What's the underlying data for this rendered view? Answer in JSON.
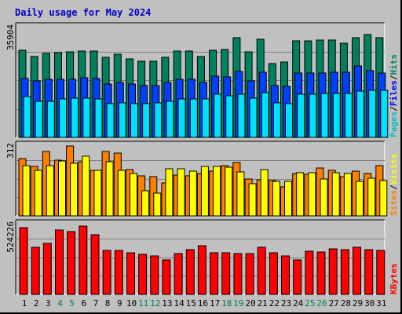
{
  "chart_data": {
    "type": "bar",
    "title": "Daily usage for May 2024",
    "categories": [
      "1",
      "2",
      "3",
      "4",
      "5",
      "6",
      "7",
      "8",
      "9",
      "10",
      "11",
      "12",
      "13",
      "14",
      "15",
      "16",
      "17",
      "18",
      "19",
      "20",
      "21",
      "22",
      "23",
      "24",
      "25",
      "26",
      "27",
      "28",
      "29",
      "30",
      "31"
    ],
    "weekend_days": [
      "4",
      "5",
      "11",
      "12",
      "18",
      "19",
      "25",
      "26"
    ],
    "panels": {
      "hits": {
        "ymax_label": "35904",
        "ymax": 35904,
        "legend": [
          "Pages",
          "Files",
          "Hits"
        ],
        "series": [
          {
            "name": "Hits",
            "color": "#00805c",
            "values": [
              28100,
              26000,
              27000,
              27200,
              27600,
              27700,
              27700,
              25900,
              26800,
              25300,
              24600,
              24600,
              25900,
              27800,
              27900,
              26100,
              28000,
              28200,
              32100,
              27600,
              31500,
              23800,
              24300,
              31100,
              31100,
              31300,
              31300,
              30400,
              32200,
              33000,
              32200
            ]
          },
          {
            "name": "Files",
            "color": "#0040ff",
            "values": [
              19000,
              18100,
              18800,
              18800,
              18700,
              19100,
              18900,
              17300,
              17700,
              17300,
              16800,
              16700,
              17600,
              18800,
              18800,
              17700,
              19800,
              19500,
              21200,
              18200,
              20900,
              16800,
              16500,
              20800,
              20800,
              20800,
              20900,
              20900,
              23000,
              21400,
              20800
            ]
          },
          {
            "name": "Pages",
            "color": "#00e0ff",
            "values": [
              13100,
              11700,
              11700,
              12500,
              12600,
              12600,
              12500,
              10800,
              11100,
              10900,
              10900,
              11100,
              11600,
              12400,
              12400,
              12300,
              13800,
              13400,
              13900,
              12600,
              14500,
              11200,
              10900,
              13800,
              13800,
              14100,
              14200,
              14200,
              15000,
              15100,
              15100
            ]
          }
        ]
      },
      "visits": {
        "ymax_label": "312",
        "ymax": 312,
        "legend": [
          "Sites",
          "Visits"
        ],
        "series": [
          {
            "name": "Visits",
            "color": "#ff8000",
            "values": [
              250,
              215,
              280,
              242,
              305,
              238,
              200,
              280,
              275,
              202,
              175,
              170,
              145,
              180,
              175,
              185,
              195,
              220,
              232,
              160,
              158,
              153,
              128,
              185,
              182,
              210,
              198,
              173,
              195,
              185,
              218
            ]
          },
          {
            "name": "Sites",
            "color": "#ffff00",
            "values": [
              220,
              200,
              220,
              240,
              230,
              260,
              200,
              235,
              198,
              185,
              108,
              100,
              205,
              205,
              195,
              215,
              215,
              214,
              192,
              140,
              202,
              150,
              150,
              190,
              188,
              160,
              190,
              185,
              150,
              165,
              154
            ]
          }
        ]
      },
      "kbytes": {
        "ymax_label": "524226",
        "ymax": 524226,
        "legend": [
          "KBytes"
        ],
        "series": [
          {
            "name": "KBytes",
            "color": "#ff0000",
            "values": [
              489000,
              348000,
              375000,
              470000,
              460000,
              500000,
              437000,
              322000,
              325000,
              308000,
              293000,
              285000,
              255000,
              300000,
              331000,
              360000,
              305000,
              308000,
              298000,
              299000,
              346000,
              303000,
              284000,
              256000,
              314000,
              310000,
              334000,
              328000,
              343000,
              326000,
              325000
            ]
          }
        ]
      }
    }
  }
}
